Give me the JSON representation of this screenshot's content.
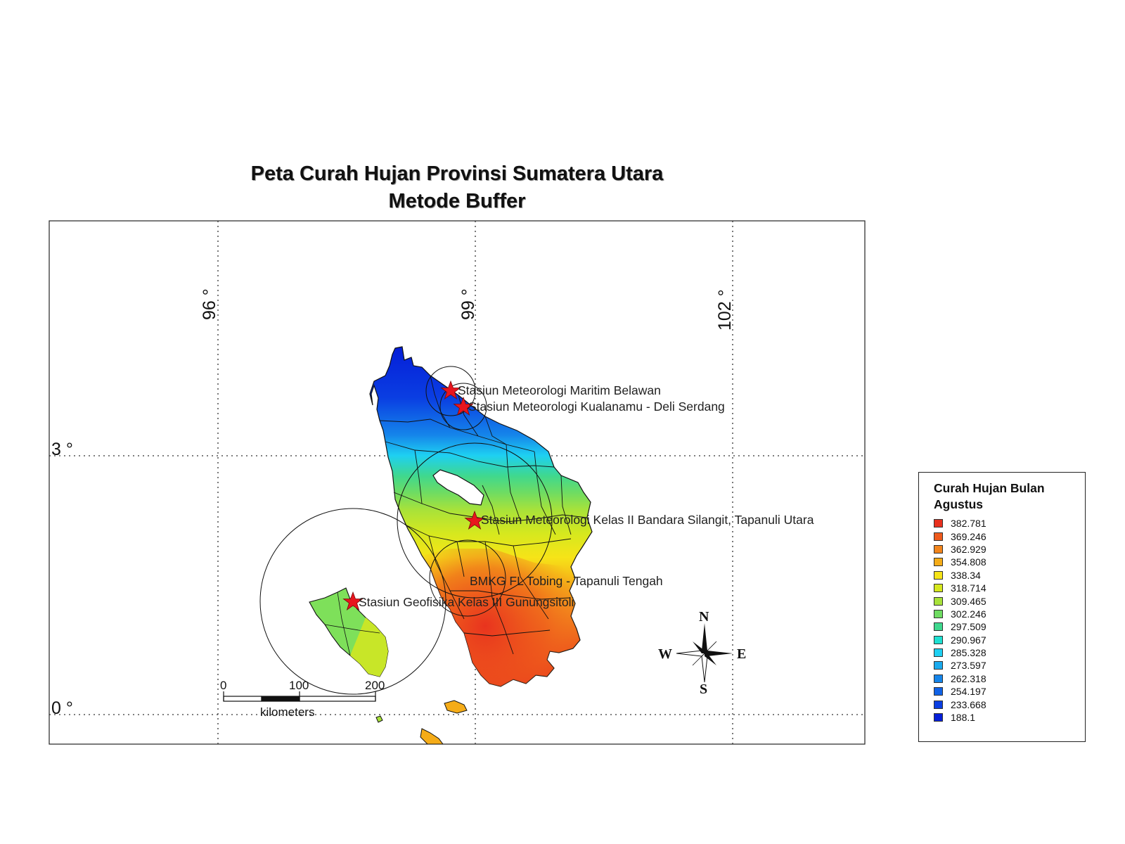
{
  "title": {
    "line1": "Peta Curah Hujan Provinsi Sumatera Utara",
    "line2": "Metode Buffer"
  },
  "grid": {
    "longitude_labels": [
      "96 °",
      "99 °",
      "102 °"
    ],
    "latitude_labels": [
      "3 °",
      "0 °"
    ]
  },
  "stations": [
    {
      "name": "Stasiun Meteorologi Maritim Belawan"
    },
    {
      "name": "Stasiun Meteorologi Kualanamu - Deli Serdang"
    },
    {
      "name": "Stasiun Meteorologi Kelas II Bandara Silangit, Tapanuli Utara"
    },
    {
      "name": "BMKG FL Tobing - Tapanuli Tengah"
    },
    {
      "name": "Stasiun Geofisika Kelas III Gunungsitoli"
    }
  ],
  "scale_bar": {
    "tick_labels": [
      "0",
      "100",
      "200"
    ],
    "unit": "kilometers"
  },
  "north_arrow": {
    "n": "N",
    "s": "S",
    "e": "E",
    "w": "W"
  },
  "legend": {
    "title": "Curah Hujan Bulan Agustus",
    "items": [
      {
        "label": "382.781",
        "color": "#e8301e"
      },
      {
        "label": "369.246",
        "color": "#ee5a1c"
      },
      {
        "label": "362.929",
        "color": "#f2851c"
      },
      {
        "label": "354.808",
        "color": "#f5ac18"
      },
      {
        "label": "338.34",
        "color": "#f6e418"
      },
      {
        "label": "318.714",
        "color": "#d6e81e"
      },
      {
        "label": "309.465",
        "color": "#a8e23a"
      },
      {
        "label": "302.246",
        "color": "#6fdc62"
      },
      {
        "label": "297.509",
        "color": "#3fd88e"
      },
      {
        "label": "290.967",
        "color": "#1ee0d2"
      },
      {
        "label": "285.328",
        "color": "#1ed0f2"
      },
      {
        "label": "273.597",
        "color": "#1aaaee"
      },
      {
        "label": "262.318",
        "color": "#1585ea"
      },
      {
        "label": "254.197",
        "color": "#1062e6"
      },
      {
        "label": "233.668",
        "color": "#0a3ee2"
      },
      {
        "label": "188.1",
        "color": "#051ed8"
      }
    ]
  }
}
